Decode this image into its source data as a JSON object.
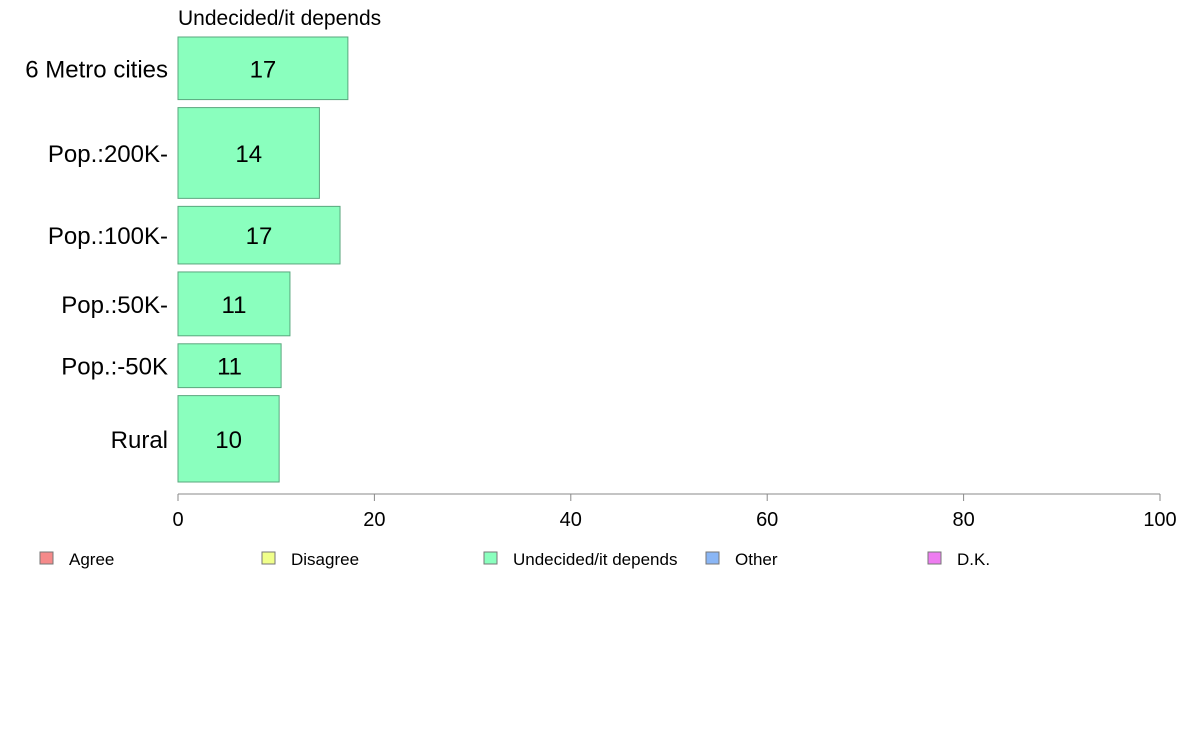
{
  "chart_data": {
    "type": "bar",
    "orientation": "horizontal",
    "title": "Undecided/it depends",
    "categories": [
      "6 Metro cities",
      "Pop.:200K-",
      "Pop.:100K-",
      "Pop.:50K-",
      "Pop.:-50K",
      "Rural"
    ],
    "series": [
      {
        "name": "Undecided/it depends",
        "color": "#8affbe",
        "values": [
          17.3,
          14.4,
          16.5,
          11.4,
          10.5,
          10.3
        ],
        "labels": [
          "17",
          "14",
          "17",
          "11",
          "11",
          "10"
        ]
      }
    ],
    "relative_weights": [
      1.0,
      1.45,
      0.92,
      1.02,
      0.7,
      1.38
    ],
    "xlim": [
      0,
      100
    ],
    "xticks": [
      0,
      20,
      40,
      60,
      80,
      100
    ],
    "grid": false,
    "legend_position": "bottom",
    "legend": [
      {
        "label": "Agree",
        "color": "#f58a8a"
      },
      {
        "label": "Disagree",
        "color": "#f0ff8a"
      },
      {
        "label": "Undecided/it depends",
        "color": "#8affbe"
      },
      {
        "label": "Other",
        "color": "#8ab6f5"
      },
      {
        "label": "D.K.",
        "color": "#ee7cf0"
      }
    ]
  }
}
